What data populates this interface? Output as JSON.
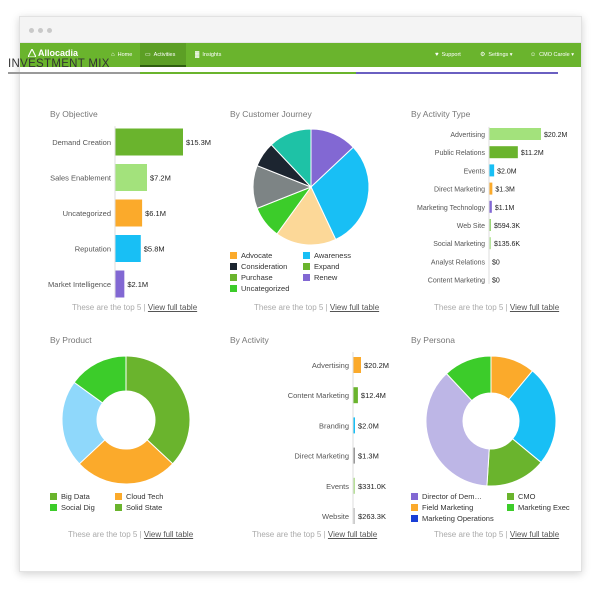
{
  "app": {
    "name": "Allocadia",
    "nav": [
      {
        "label": "Home",
        "icon": "home-icon",
        "glyph": "⌂",
        "active": false
      },
      {
        "label": "Activities",
        "icon": "monitor-icon",
        "glyph": "▭",
        "active": true
      },
      {
        "label": "Insights",
        "icon": "bar-chart-icon",
        "glyph": "▓",
        "active": false
      }
    ],
    "nav_right": [
      {
        "label": "Support",
        "icon": "heart-icon",
        "glyph": "♥"
      },
      {
        "label": "Settings ▾",
        "icon": "gear-icon",
        "glyph": "⚙"
      },
      {
        "label": "CMO Carole ▾",
        "icon": "user-icon",
        "glyph": "☺"
      }
    ]
  },
  "page": {
    "title": "INVESTMENT MIX",
    "rule_colors": [
      "#9a9a9a",
      "#6ab42d",
      "#6a5fc1"
    ]
  },
  "panels": {
    "objective": {
      "title": "By Objective",
      "footer_text": "These are the top 5 |",
      "footer_link": "View full table"
    },
    "journey": {
      "title": "By Customer Journey",
      "footer_text": "These are the top 5 |",
      "footer_link": "View full table"
    },
    "activity_type": {
      "title": "By Activity Type",
      "footer_text": "These are the top 5 |",
      "footer_link": "View full table"
    },
    "product": {
      "title": "By Product",
      "footer_text": "These are the top 5 |",
      "footer_link": "View full table"
    },
    "activity": {
      "title": "By Activity",
      "footer_text": "These are the top 5 |",
      "footer_link": "View full table"
    },
    "persona": {
      "title": "By Persona",
      "footer_text": "These are the top 5 |",
      "footer_link": "View full table"
    }
  },
  "chart_data": [
    {
      "id": "objective",
      "type": "bar",
      "orientation": "horizontal",
      "categories": [
        "Demand Creation",
        "Sales Enablement",
        "Uncategorized",
        "Reputation",
        "Market Intelligence"
      ],
      "values": [
        15.3,
        7.2,
        6.1,
        5.8,
        2.1
      ],
      "value_labels": [
        "$15.3M",
        "$7.2M",
        "$6.1M",
        "$5.8M",
        "$2.1M"
      ],
      "colors": [
        "#6ab42d",
        "#a3e27c",
        "#fbaa2b",
        "#18bff5",
        "#8268d3"
      ],
      "units": "$M",
      "xlim": [
        0,
        15.3
      ]
    },
    {
      "id": "journey",
      "type": "pie",
      "labels": [
        "Renew",
        "Awareness",
        "Advocate",
        "Expand",
        "Purchase",
        "Consideration",
        "Uncategorized"
      ],
      "values": [
        13,
        30,
        17,
        9,
        12,
        7,
        12
      ],
      "colors": [
        "#8268d3",
        "#18bff5",
        "#fcd898",
        "#3ccc2a",
        "#7d8485",
        "#1c2530",
        "#1ec2a6"
      ],
      "legend": [
        {
          "label": "Advocate",
          "color": "#fbaa2b"
        },
        {
          "label": "Awareness",
          "color": "#18bff5"
        },
        {
          "label": "Consideration",
          "color": "#1c2530"
        },
        {
          "label": "Expand",
          "color": "#6ab42d"
        },
        {
          "label": "Purchase",
          "color": "#6ab42d"
        },
        {
          "label": "Renew",
          "color": "#8268d3"
        },
        {
          "label": "Uncategorized",
          "color": "#3ccc2a"
        }
      ],
      "legend_placement": "bottom"
    },
    {
      "id": "activity_type",
      "type": "bar",
      "orientation": "horizontal",
      "categories": [
        "Advertising",
        "Public Relations",
        "Events",
        "Direct Marketing",
        "Marketing Technology",
        "Web Site",
        "Social Marketing",
        "Analyst Relations",
        "Content Marketing"
      ],
      "values": [
        20.2,
        11.2,
        2.0,
        1.3,
        1.1,
        0.5943,
        0.1356,
        0,
        0
      ],
      "value_labels": [
        "$20.2M",
        "$11.2M",
        "$2.0M",
        "$1.3M",
        "$1.1M",
        "$594.3K",
        "$135.6K",
        "$0",
        "$0"
      ],
      "colors": [
        "#a3e27c",
        "#6ab42d",
        "#18bff5",
        "#fbaa2b",
        "#8268d3",
        "#9bd677",
        "#b9e6a0",
        "#cccccc",
        "#cccccc"
      ],
      "units": "$M",
      "xlim": [
        0,
        20.2
      ]
    },
    {
      "id": "product",
      "type": "pie",
      "donut": true,
      "labels": [
        "Solid State",
        "Cloud Tech",
        "Big Data",
        "Social Dig"
      ],
      "values": [
        37,
        26,
        22,
        15
      ],
      "colors": [
        "#6ab42d",
        "#fbaa2b",
        "#8fd8fb",
        "#3ccc2a"
      ],
      "legend": [
        {
          "label": "Big Data",
          "color": "#6ab42d"
        },
        {
          "label": "Cloud Tech",
          "color": "#fbaa2b"
        },
        {
          "label": "Social Dig",
          "color": "#3ccc2a"
        },
        {
          "label": "Solid State",
          "color": "#6ab42d"
        }
      ],
      "legend_placement": "bottom"
    },
    {
      "id": "activity",
      "type": "bar",
      "orientation": "horizontal",
      "categories": [
        "Advertising",
        "Content Marketing",
        "Branding",
        "Direct Marketing",
        "Events",
        "Website"
      ],
      "values": [
        20.2,
        12.4,
        2.0,
        1.3,
        0.331,
        0.2633
      ],
      "value_labels": [
        "$20.2M",
        "$12.4M",
        "$2.0M",
        "$1.3M",
        "$331.0K",
        "$263.3K"
      ],
      "colors": [
        "#fbaa2b",
        "#6ab42d",
        "#18bff5",
        "#9a9a9a",
        "#b8e09a",
        "#cccccc"
      ],
      "units": "$M",
      "xlim": [
        0,
        20.2
      ]
    },
    {
      "id": "persona",
      "type": "pie",
      "donut": true,
      "labels": [
        "CMO",
        "Marketing Exec",
        "Marketing Operations",
        "Director of Dem…",
        "Field Marketing"
      ],
      "values": [
        11,
        25,
        15,
        37,
        12
      ],
      "colors": [
        "#fbaa2b",
        "#18bff5",
        "#6ab42d",
        "#bdb6e6",
        "#3ccc2a"
      ],
      "legend": [
        {
          "label": "Director of Dem…",
          "color": "#8268d3"
        },
        {
          "label": "CMO",
          "color": "#6ab42d"
        },
        {
          "label": "Field Marketing",
          "color": "#fbaa2b"
        },
        {
          "label": "Marketing Exec",
          "color": "#3ccc2a"
        },
        {
          "label": "Marketing Operations",
          "color": "#1a3fd6"
        }
      ],
      "legend_placement": "bottom"
    }
  ]
}
